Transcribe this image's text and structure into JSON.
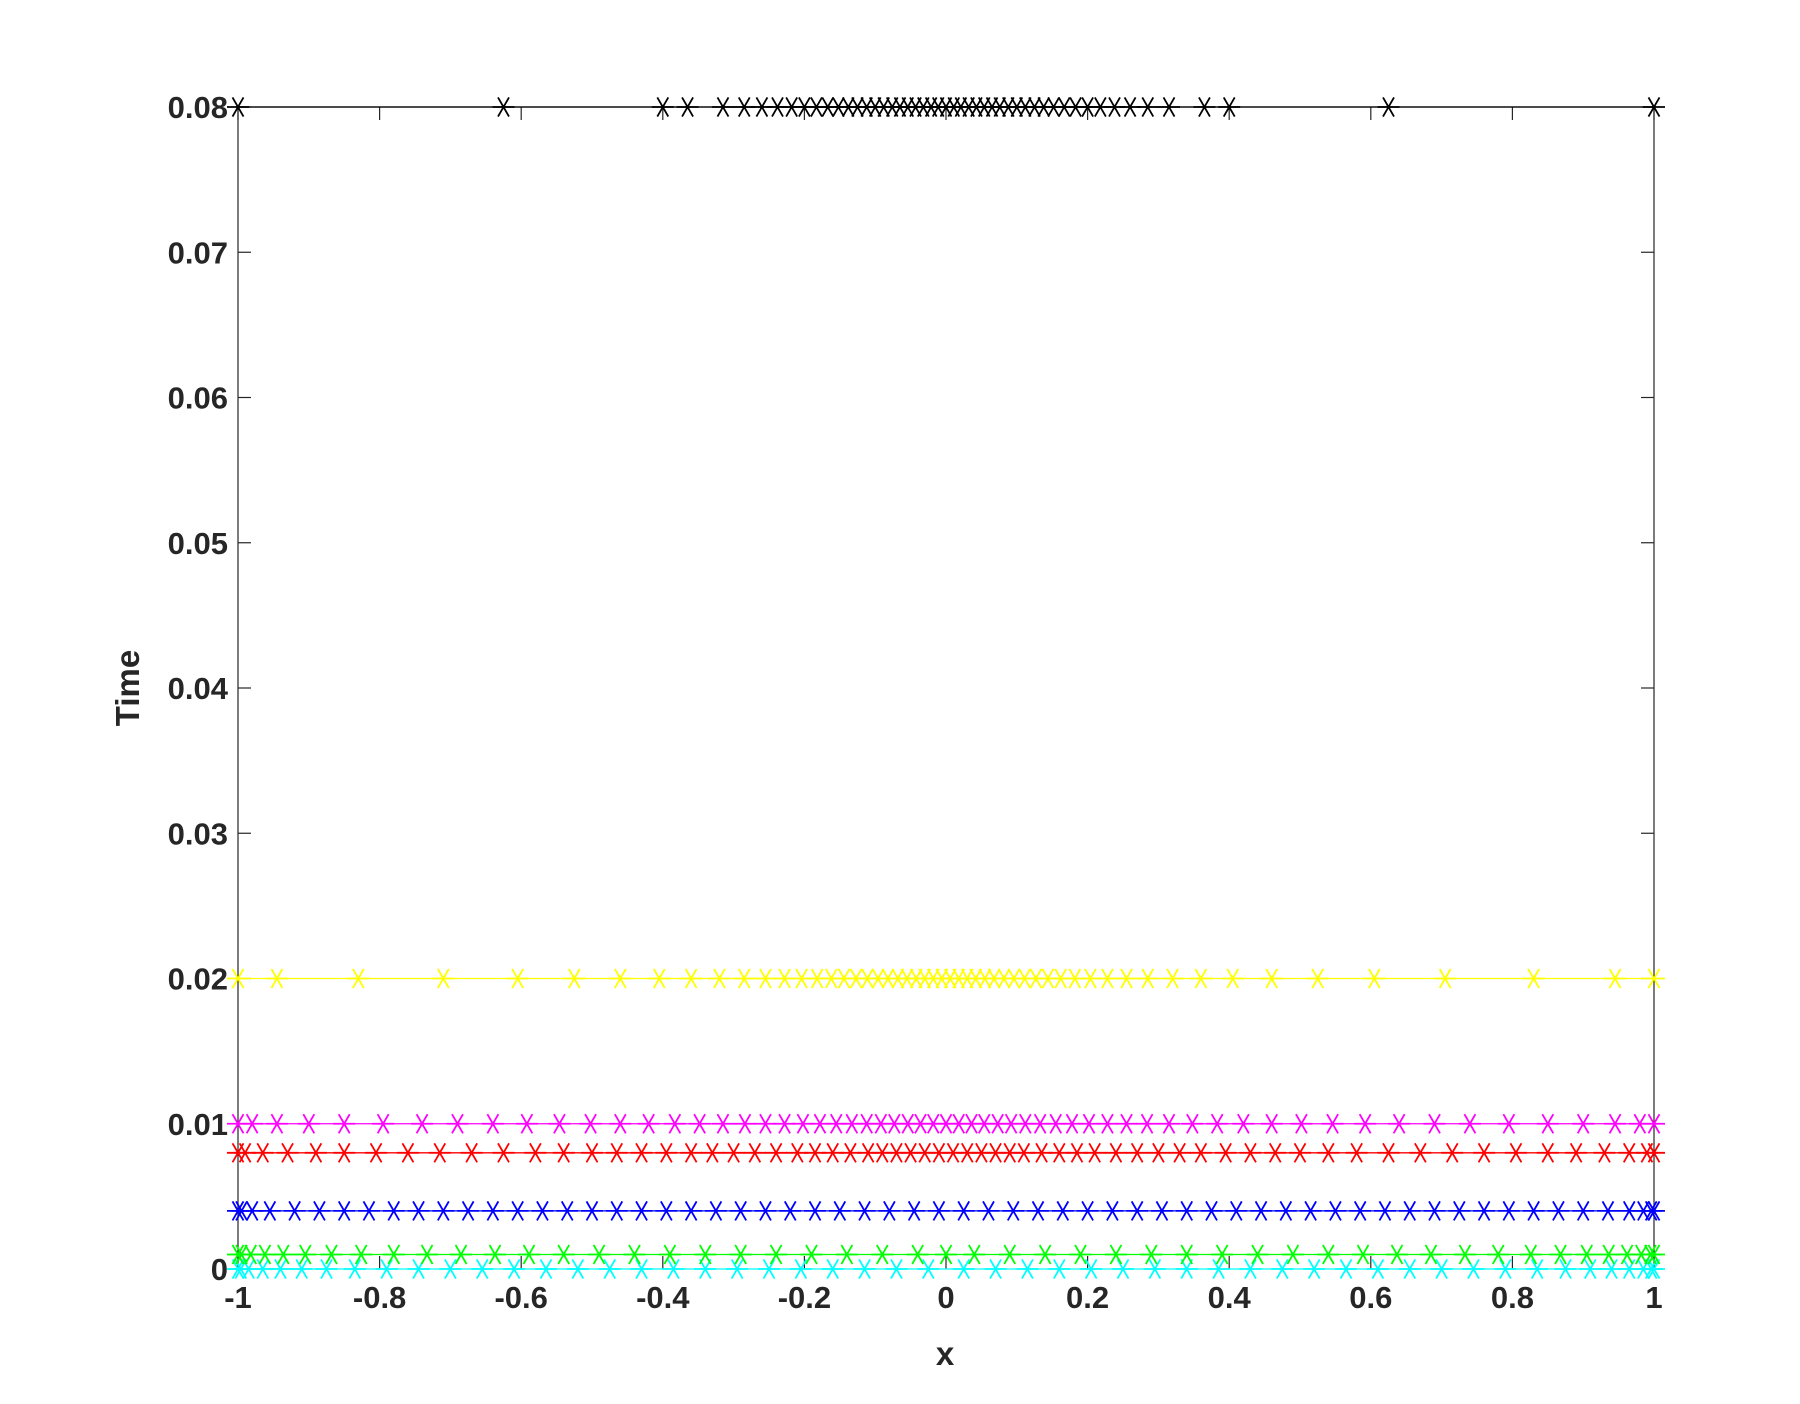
{
  "chart_data": {
    "type": "scatter",
    "title": "",
    "xlabel": "x",
    "ylabel": "Time",
    "xlim": [
      -1,
      1
    ],
    "ylim": [
      0,
      0.08
    ],
    "grid": false,
    "legend": "none",
    "x_ticks": [
      -1,
      -0.8,
      -0.6,
      -0.4,
      -0.2,
      0,
      0.2,
      0.4,
      0.6,
      0.8,
      1
    ],
    "x_tick_labels": [
      "-1",
      "-0.8",
      "-0.6",
      "-0.4",
      "-0.2",
      "0",
      "0.2",
      "0.4",
      "0.6",
      "0.8",
      "1"
    ],
    "y_ticks": [
      0,
      0.01,
      0.02,
      0.03,
      0.04,
      0.05,
      0.06,
      0.07,
      0.08
    ],
    "y_tick_labels": [
      "0",
      "0.01",
      "0.02",
      "0.03",
      "0.04",
      "0.05",
      "0.06",
      "0.07",
      "0.08"
    ],
    "marker": "asterisk",
    "series": [
      {
        "color": "#00ffff",
        "y": 0,
        "x": [
          -1.0,
          -0.996,
          -0.985,
          -0.965,
          -0.94,
          -0.91,
          -0.875,
          -0.835,
          -0.79,
          -0.745,
          -0.7,
          -0.655,
          -0.61,
          -0.565,
          -0.52,
          -0.475,
          -0.43,
          -0.385,
          -0.34,
          -0.295,
          -0.25,
          -0.205,
          -0.16,
          -0.115,
          -0.07,
          -0.025,
          0.025,
          0.07,
          0.115,
          0.16,
          0.205,
          0.25,
          0.295,
          0.34,
          0.385,
          0.43,
          0.475,
          0.52,
          0.565,
          0.61,
          0.655,
          0.7,
          0.745,
          0.79,
          0.835,
          0.875,
          0.91,
          0.94,
          0.965,
          0.985,
          0.996,
          1.0
        ]
      },
      {
        "color": "#00ff00",
        "y": 0.001,
        "x": [
          -1.0,
          -0.995,
          -0.982,
          -0.962,
          -0.936,
          -0.905,
          -0.868,
          -0.826,
          -0.78,
          -0.733,
          -0.685,
          -0.637,
          -0.589,
          -0.54,
          -0.49,
          -0.44,
          -0.39,
          -0.34,
          -0.29,
          -0.24,
          -0.19,
          -0.14,
          -0.09,
          -0.04,
          0.0,
          0.04,
          0.09,
          0.14,
          0.19,
          0.24,
          0.29,
          0.34,
          0.39,
          0.44,
          0.49,
          0.54,
          0.589,
          0.637,
          0.685,
          0.733,
          0.78,
          0.826,
          0.868,
          0.905,
          0.936,
          0.962,
          0.982,
          0.995,
          1.0
        ]
      },
      {
        "color": "#0000ff",
        "y": 0.004,
        "x": [
          -1.0,
          -0.995,
          -0.98,
          -0.955,
          -0.92,
          -0.885,
          -0.85,
          -0.815,
          -0.78,
          -0.745,
          -0.71,
          -0.675,
          -0.64,
          -0.605,
          -0.57,
          -0.535,
          -0.5,
          -0.465,
          -0.43,
          -0.395,
          -0.36,
          -0.325,
          -0.29,
          -0.255,
          -0.22,
          -0.185,
          -0.15,
          -0.115,
          -0.08,
          -0.045,
          -0.01,
          0.025,
          0.06,
          0.095,
          0.13,
          0.165,
          0.2,
          0.235,
          0.27,
          0.305,
          0.34,
          0.375,
          0.41,
          0.445,
          0.48,
          0.515,
          0.55,
          0.585,
          0.62,
          0.655,
          0.69,
          0.725,
          0.76,
          0.795,
          0.83,
          0.865,
          0.9,
          0.935,
          0.965,
          0.985,
          0.996,
          1.0
        ]
      },
      {
        "color": "#ff0000",
        "y": 0.008,
        "x": [
          -1.0,
          -0.99,
          -0.965,
          -0.93,
          -0.89,
          -0.85,
          -0.805,
          -0.76,
          -0.715,
          -0.67,
          -0.625,
          -0.58,
          -0.54,
          -0.5,
          -0.465,
          -0.43,
          -0.395,
          -0.36,
          -0.33,
          -0.3,
          -0.27,
          -0.24,
          -0.21,
          -0.185,
          -0.16,
          -0.135,
          -0.11,
          -0.09,
          -0.07,
          -0.05,
          -0.03,
          -0.01,
          0.01,
          0.03,
          0.05,
          0.07,
          0.09,
          0.11,
          0.135,
          0.16,
          0.185,
          0.21,
          0.24,
          0.27,
          0.3,
          0.33,
          0.36,
          0.395,
          0.43,
          0.465,
          0.5,
          0.54,
          0.58,
          0.625,
          0.67,
          0.715,
          0.76,
          0.805,
          0.85,
          0.89,
          0.93,
          0.965,
          0.99,
          1.0
        ]
      },
      {
        "color": "#ff00ff",
        "y": 0.01,
        "x": [
          -1.0,
          -0.98,
          -0.945,
          -0.9,
          -0.85,
          -0.795,
          -0.74,
          -0.69,
          -0.64,
          -0.592,
          -0.546,
          -0.502,
          -0.46,
          -0.42,
          -0.383,
          -0.348,
          -0.315,
          -0.284,
          -0.255,
          -0.228,
          -0.202,
          -0.178,
          -0.155,
          -0.133,
          -0.112,
          -0.092,
          -0.073,
          -0.054,
          -0.036,
          -0.018,
          0.0,
          0.018,
          0.036,
          0.054,
          0.073,
          0.092,
          0.112,
          0.133,
          0.155,
          0.178,
          0.202,
          0.228,
          0.255,
          0.284,
          0.315,
          0.348,
          0.383,
          0.42,
          0.46,
          0.502,
          0.546,
          0.592,
          0.64,
          0.69,
          0.74,
          0.795,
          0.85,
          0.9,
          0.945,
          0.98,
          1.0
        ]
      },
      {
        "color": "#ffff00",
        "y": 0.02,
        "x": [
          -1.0,
          -0.945,
          -0.83,
          -0.71,
          -0.605,
          -0.525,
          -0.46,
          -0.405,
          -0.36,
          -0.32,
          -0.285,
          -0.255,
          -0.228,
          -0.204,
          -0.182,
          -0.162,
          -0.144,
          -0.127,
          -0.111,
          -0.096,
          -0.082,
          -0.068,
          -0.055,
          -0.042,
          -0.03,
          -0.018,
          -0.006,
          0.006,
          0.018,
          0.03,
          0.042,
          0.055,
          0.068,
          0.082,
          0.096,
          0.111,
          0.127,
          0.144,
          0.162,
          0.182,
          0.204,
          0.228,
          0.255,
          0.285,
          0.32,
          0.36,
          0.405,
          0.46,
          0.525,
          0.605,
          0.705,
          0.83,
          0.945,
          1.0
        ]
      },
      {
        "color": "#000000",
        "y": 0.08,
        "x": [
          -1.0,
          -0.625,
          -0.4,
          -0.365,
          -0.315,
          -0.285,
          -0.26,
          -0.238,
          -0.218,
          -0.2,
          -0.183,
          -0.167,
          -0.152,
          -0.138,
          -0.125,
          -0.112,
          -0.1,
          -0.088,
          -0.076,
          -0.065,
          -0.054,
          -0.043,
          -0.032,
          -0.021,
          -0.011,
          0.0,
          0.011,
          0.021,
          0.032,
          0.043,
          0.054,
          0.065,
          0.076,
          0.088,
          0.1,
          0.112,
          0.125,
          0.138,
          0.152,
          0.167,
          0.183,
          0.2,
          0.218,
          0.238,
          0.26,
          0.285,
          0.315,
          0.365,
          0.4,
          0.625,
          1.0
        ]
      }
    ]
  }
}
